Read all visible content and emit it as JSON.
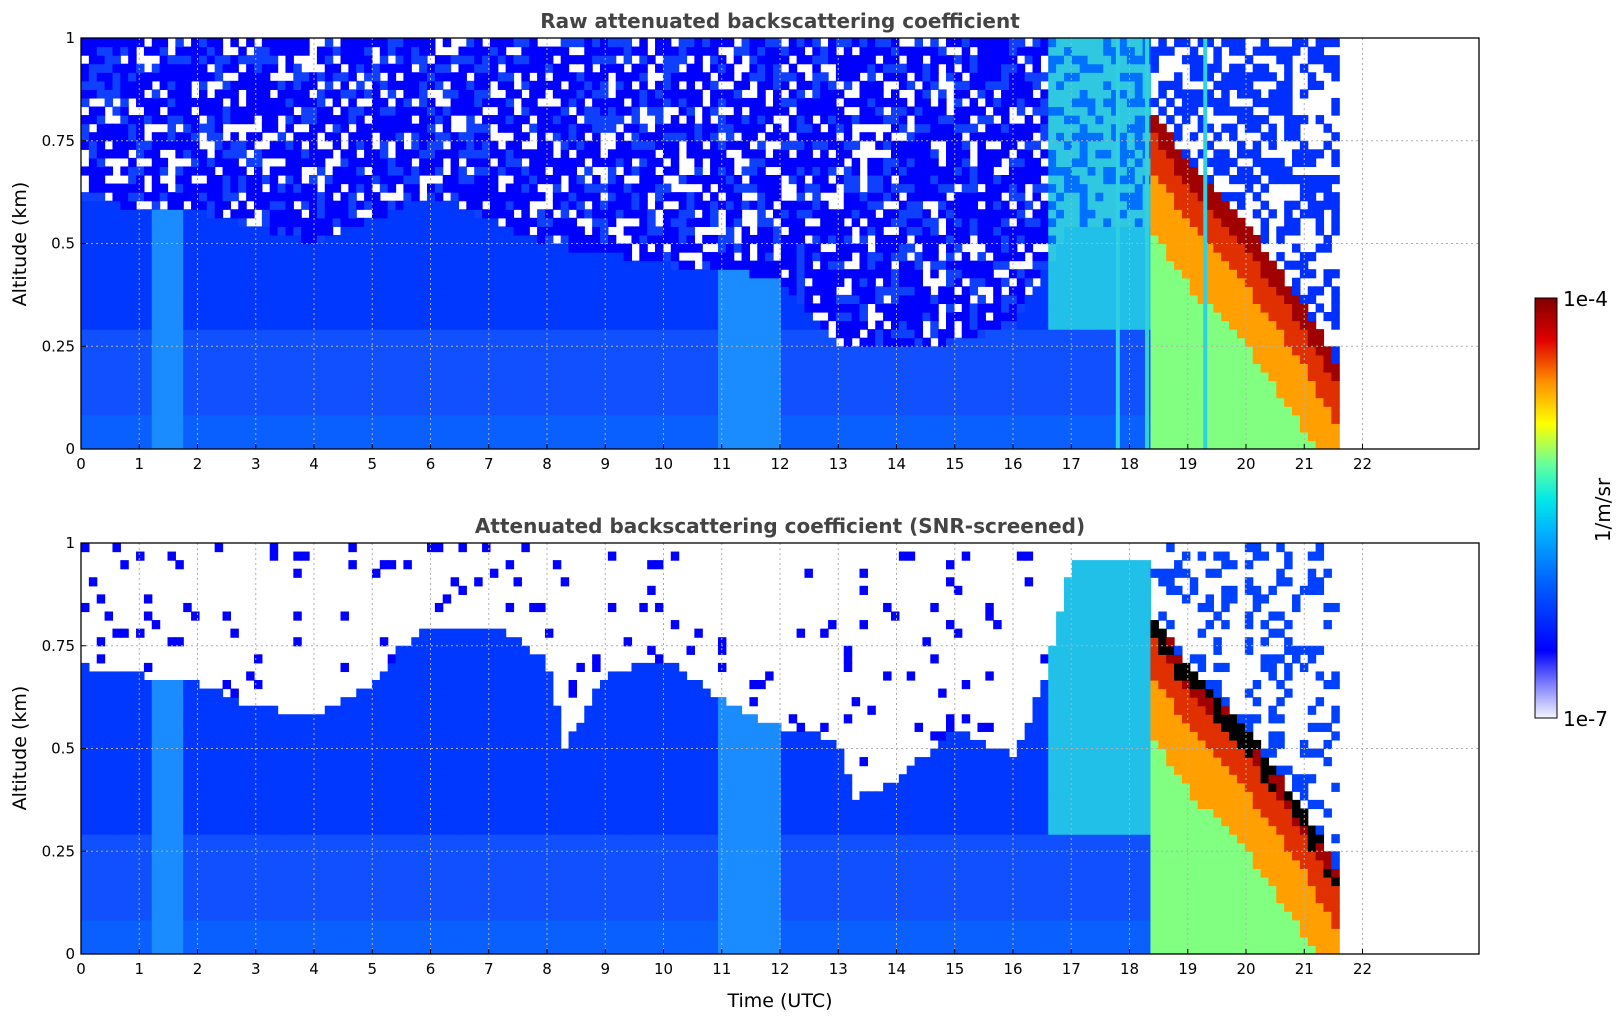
{
  "chart_data": [
    {
      "type": "heatmap",
      "title": "Raw attenuated backscattering coefficient",
      "xlabel": "",
      "ylabel": "Altitude (km)",
      "xlim": [
        0,
        24
      ],
      "ylim": [
        0,
        1
      ],
      "x_ticks": [
        "0",
        "1",
        "2",
        "3",
        "4",
        "5",
        "6",
        "7",
        "8",
        "9",
        "10",
        "11",
        "12",
        "13",
        "14",
        "15",
        "16",
        "17",
        "18",
        "19",
        "20",
        "21",
        "22"
      ],
      "y_ticks": [
        "0",
        "0.25",
        "0.5",
        "0.75",
        "1"
      ],
      "grid": true,
      "data_end_time": 21.6,
      "features": {
        "boundary_layer_top_km": [
          [
            0,
            0.6
          ],
          [
            2,
            0.58
          ],
          [
            4,
            0.5
          ],
          [
            6,
            0.62
          ],
          [
            8,
            0.5
          ],
          [
            10,
            0.45
          ],
          [
            12,
            0.42
          ],
          [
            13,
            0.25
          ],
          [
            15,
            0.26
          ],
          [
            16,
            0.3
          ],
          [
            17,
            0.55
          ]
        ],
        "cloud_layer": {
          "start_time": 18.3,
          "end_time": 21.6,
          "top_km": [
            [
              18.3,
              0.85
            ],
            [
              19,
              0.7
            ],
            [
              20,
              0.55
            ],
            [
              21,
              0.35
            ],
            [
              21.6,
              0.2
            ]
          ]
        },
        "columns": [
          {
            "time": 17.8
          },
          {
            "time": 18.3
          },
          {
            "time": 19.3
          }
        ]
      }
    },
    {
      "type": "heatmap",
      "title": "Attenuated backscattering coefficient (SNR-screened)",
      "xlabel": "Time (UTC)",
      "ylabel": "Altitude (km)",
      "xlim": [
        0,
        24
      ],
      "ylim": [
        0,
        1
      ],
      "x_ticks": [
        "0",
        "1",
        "2",
        "3",
        "4",
        "5",
        "6",
        "7",
        "8",
        "9",
        "10",
        "11",
        "12",
        "13",
        "14",
        "15",
        "16",
        "17",
        "18",
        "19",
        "20",
        "21",
        "22"
      ],
      "y_ticks": [
        "0",
        "0.25",
        "0.5",
        "0.75",
        "1"
      ],
      "grid": true,
      "data_end_time": 21.6,
      "features": {
        "screened_top_km": [
          [
            0,
            0.7
          ],
          [
            1,
            0.68
          ],
          [
            2,
            0.66
          ],
          [
            3,
            0.6
          ],
          [
            4,
            0.58
          ],
          [
            5,
            0.65
          ],
          [
            5.5,
            0.75
          ],
          [
            6,
            0.8
          ],
          [
            7,
            0.8
          ],
          [
            8,
            0.72
          ],
          [
            8.3,
            0.5
          ],
          [
            9,
            0.68
          ],
          [
            10,
            0.72
          ],
          [
            11,
            0.62
          ],
          [
            12,
            0.55
          ],
          [
            13,
            0.52
          ],
          [
            13.3,
            0.38
          ],
          [
            14,
            0.42
          ],
          [
            15,
            0.55
          ],
          [
            16,
            0.48
          ],
          [
            16.5,
            0.65
          ],
          [
            17,
            0.95
          ],
          [
            18,
            0.95
          ]
        ],
        "cloud_layer": {
          "start_time": 18.3,
          "end_time": 21.6,
          "top_km": [
            [
              18.3,
              0.85
            ],
            [
              19,
              0.7
            ],
            [
              20,
              0.55
            ],
            [
              21,
              0.35
            ],
            [
              21.6,
              0.2
            ]
          ]
        }
      }
    }
  ],
  "colorbar": {
    "label": "1/m/sr",
    "max_label": "1e-4",
    "min_label": "1e-7",
    "colors": [
      "#ffffff",
      "#d0d0ff",
      "#0000ff",
      "#0050ff",
      "#00a0ff",
      "#00e0ff",
      "#40ffc0",
      "#a0ff60",
      "#ffff00",
      "#ffb000",
      "#ff5000",
      "#e00000",
      "#800000"
    ]
  }
}
